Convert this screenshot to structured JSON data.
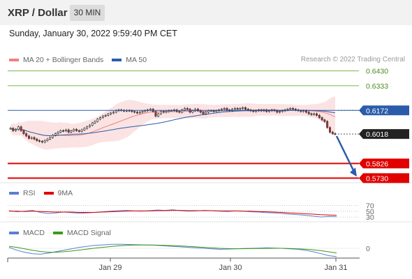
{
  "header": {
    "pair": "XRP / Dollar",
    "timeframe": "30 MIN"
  },
  "datetime": "Sunday, January 30, 2022 9:59:40 PM CET",
  "credit": "Research © 2022 Trading Central",
  "colors": {
    "ma20": "#f08080",
    "ma50": "#2a5caa",
    "resistance": "#7ab648",
    "support": "#e00000",
    "candle_up": "#ffffff",
    "candle_down": "#c0392b",
    "rsi": "#5b7fd1",
    "rsi_ma": "#e00000",
    "macd": "#5b7fd1",
    "macd_signal": "#3a9a1a",
    "arrow": "#2a5caa"
  },
  "chart_data": [
    {
      "type": "candlestick",
      "title": "XRP / Dollar",
      "legend": [
        {
          "name": "MA 20 + Bollinger Bands",
          "color": "#f08080"
        },
        {
          "name": "MA 50",
          "color": "#2a5caa"
        }
      ],
      "ylim": [
        0.57,
        0.646
      ],
      "x_ticks": [
        "Jan 29",
        "Jan 30",
        "Jan 31"
      ],
      "levels": [
        {
          "value": 0.643,
          "label": "0.6430",
          "kind": "resistance"
        },
        {
          "value": 0.6333,
          "label": "0.6333",
          "kind": "resistance"
        },
        {
          "value": 0.6172,
          "label": "0.6172",
          "kind": "ma50"
        },
        {
          "value": 0.6018,
          "label": "0.6018",
          "kind": "last"
        },
        {
          "value": 0.5826,
          "label": "0.5826",
          "kind": "support"
        },
        {
          "value": 0.573,
          "label": "0.5730",
          "kind": "support"
        }
      ],
      "close": [
        0.6055,
        0.604,
        0.6048,
        0.6065,
        0.604,
        0.602,
        0.6005,
        0.599,
        0.5995,
        0.5985,
        0.5975,
        0.597,
        0.5965,
        0.5975,
        0.5985,
        0.5995,
        0.601,
        0.602,
        0.603,
        0.604,
        0.6038,
        0.6045,
        0.603,
        0.6038,
        0.6048,
        0.604,
        0.6035,
        0.6045,
        0.6055,
        0.6065,
        0.6075,
        0.609,
        0.61,
        0.6115,
        0.6125,
        0.6135,
        0.614,
        0.6148,
        0.6155,
        0.616,
        0.617,
        0.6175,
        0.6172,
        0.6168,
        0.6172,
        0.617,
        0.6165,
        0.616,
        0.6155,
        0.616,
        0.6165,
        0.617,
        0.6175,
        0.618,
        0.6165,
        0.6135,
        0.615,
        0.6165,
        0.616,
        0.6165,
        0.617,
        0.617,
        0.6175,
        0.6165,
        0.616,
        0.6175,
        0.6185,
        0.618,
        0.616,
        0.617,
        0.618,
        0.617,
        0.616,
        0.615,
        0.616,
        0.617,
        0.617,
        0.6165,
        0.617,
        0.6175,
        0.618,
        0.6185,
        0.6175,
        0.617,
        0.618,
        0.6185,
        0.618,
        0.6185,
        0.619,
        0.618,
        0.6175,
        0.617,
        0.6165,
        0.617,
        0.6175,
        0.617,
        0.6175,
        0.6165,
        0.617,
        0.6175,
        0.617,
        0.616,
        0.6165,
        0.617,
        0.6175,
        0.618,
        0.6185,
        0.618,
        0.6175,
        0.617,
        0.6165,
        0.617,
        0.616,
        0.615,
        0.6145,
        0.615,
        0.614,
        0.6125,
        0.611,
        0.61,
        0.606,
        0.603,
        0.602,
        0.6018
      ]
    },
    {
      "type": "line",
      "legend": [
        {
          "name": "RSI",
          "color": "#5b7fd1"
        },
        {
          "name": "9MA",
          "color": "#e00000"
        }
      ],
      "ylim": [
        0,
        100
      ],
      "y_ticks": [
        30,
        50,
        70
      ],
      "series": [
        {
          "name": "RSI",
          "values": [
            52,
            48,
            50,
            53,
            46,
            42,
            44,
            47,
            45,
            43,
            44,
            46,
            48,
            50,
            52,
            53,
            51,
            50,
            52,
            54,
            53,
            55,
            52,
            50,
            51,
            53,
            52,
            50,
            49,
            51,
            50,
            48,
            47,
            45,
            44,
            42,
            40,
            38,
            36,
            33,
            30,
            32,
            31
          ]
        },
        {
          "name": "9MA",
          "values": [
            50,
            50,
            49,
            50,
            49,
            48,
            47,
            47,
            47,
            46,
            46,
            46,
            47,
            48,
            49,
            50,
            51,
            51,
            51,
            52,
            52,
            53,
            53,
            52,
            52,
            52,
            52,
            51,
            51,
            51,
            50,
            50,
            49,
            48,
            47,
            46,
            44,
            43,
            41,
            40,
            38,
            37,
            36
          ]
        }
      ]
    },
    {
      "type": "line",
      "legend": [
        {
          "name": "MACD",
          "color": "#5b7fd1"
        },
        {
          "name": "MACD Signal",
          "color": "#3a9a1a"
        }
      ],
      "ylim": [
        -1,
        1
      ],
      "y_ticks": [
        0
      ],
      "series": [
        {
          "name": "MACD",
          "values": [
            0.1,
            -0.2,
            -0.4,
            -0.55,
            -0.6,
            -0.5,
            -0.35,
            -0.2,
            -0.05,
            0.1,
            0.2,
            0.3,
            0.35,
            0.4,
            0.42,
            0.4,
            0.38,
            0.36,
            0.34,
            0.3,
            0.25,
            0.2,
            0.15,
            0.1,
            0.05,
            0.0,
            -0.05,
            -0.1,
            -0.08,
            -0.05,
            -0.02,
            0.0,
            0.02,
            0.05,
            0.03,
            0.0,
            -0.05,
            -0.1,
            -0.2,
            -0.35,
            -0.55,
            -0.75,
            -0.85
          ]
        },
        {
          "name": "MACD Signal",
          "values": [
            0.2,
            0.1,
            -0.05,
            -0.2,
            -0.32,
            -0.4,
            -0.4,
            -0.35,
            -0.28,
            -0.18,
            -0.08,
            0.02,
            0.1,
            0.18,
            0.25,
            0.3,
            0.33,
            0.34,
            0.34,
            0.33,
            0.31,
            0.28,
            0.24,
            0.2,
            0.15,
            0.1,
            0.05,
            0.0,
            -0.03,
            -0.04,
            -0.04,
            -0.03,
            -0.02,
            -0.01,
            0.0,
            0.0,
            -0.02,
            -0.05,
            -0.09,
            -0.15,
            -0.24,
            -0.36,
            -0.48
          ]
        }
      ]
    }
  ]
}
